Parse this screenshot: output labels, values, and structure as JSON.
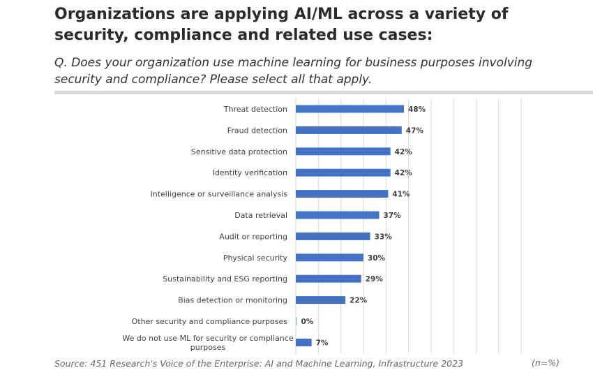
{
  "header": {
    "title": "Organizations are applying AI/ML across a variety of security, compliance and related use cases:",
    "question": "Q. Does your organization use machine learning for business purposes involving security and compliance? Please select all that apply."
  },
  "footer": {
    "source": "Source: 451 Research's Voice of the Enterprise: AI and Machine Learning, Infrastructure 2023",
    "sample_note": "(n=%)"
  },
  "colors": {
    "bar": "#4472c4",
    "grid": "#d9d9d9",
    "rule": "#d9d9d9"
  },
  "chart_data": {
    "type": "bar",
    "orientation": "horizontal",
    "title": "",
    "xlabel": "",
    "ylabel": "",
    "xlim": [
      0,
      100
    ],
    "grid": true,
    "legend": "none",
    "value_suffix": "%",
    "categories": [
      "Threat detection",
      "Fraud detection",
      "Sensitive data protection",
      "Identity verification",
      "Intelligence or surveillance analysis",
      "Data retrieval",
      "Audit or reporting",
      "Physical security",
      "Sustainability and ESG reporting",
      "Bias detection or monitoring",
      "Other security and compliance purposes",
      "We do not use ML for security or compliance purposes"
    ],
    "values": [
      48,
      47,
      42,
      42,
      41,
      37,
      33,
      30,
      29,
      22,
      0,
      7
    ]
  }
}
